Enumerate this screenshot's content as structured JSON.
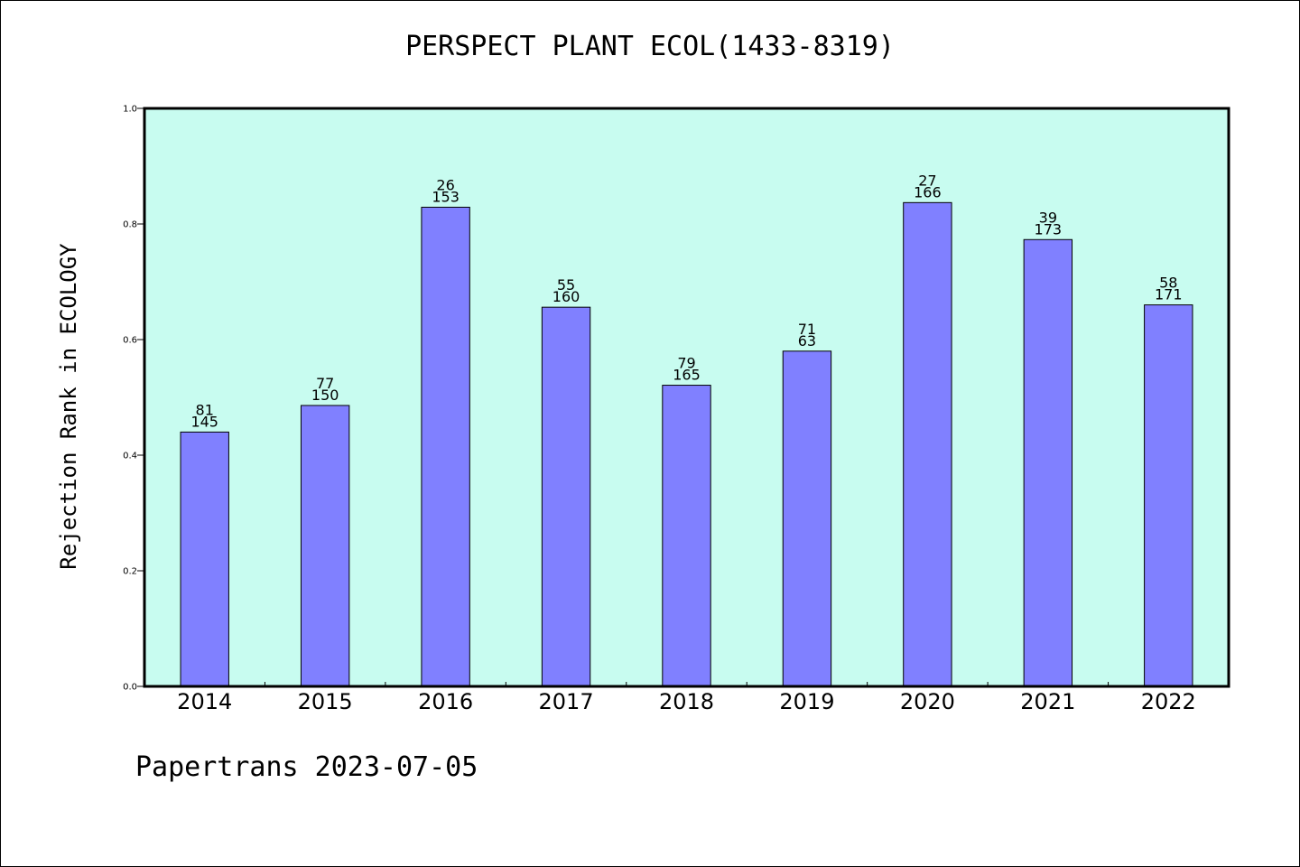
{
  "chart_data": {
    "type": "bar",
    "title": "PERSPECT PLANT ECOL(1433-8319)",
    "ylabel": "Rejection Rank in ECOLOGY",
    "xlabel": "",
    "categories": [
      "2014",
      "2015",
      "2016",
      "2017",
      "2018",
      "2019",
      "2020",
      "2021",
      "2022"
    ],
    "values": [
      0.44,
      0.486,
      0.829,
      0.656,
      0.521,
      0.58,
      0.837,
      0.773,
      0.66
    ],
    "labels_top": [
      "81",
      "77",
      "26",
      "55",
      "79",
      "71",
      "27",
      "39",
      "58"
    ],
    "labels_bottom": [
      "145",
      "150",
      "153",
      "160",
      "165",
      "63",
      "166",
      "173",
      "171"
    ],
    "ylim": [
      0,
      1.0
    ],
    "yticks": [
      "0.0",
      "0.2",
      "0.4",
      "0.6",
      "0.8",
      "1.0"
    ],
    "grid": false,
    "colors": {
      "bar": "#8080ff",
      "plot_background": "#c8fcf0"
    }
  },
  "footer": "Papertrans 2023-07-05"
}
